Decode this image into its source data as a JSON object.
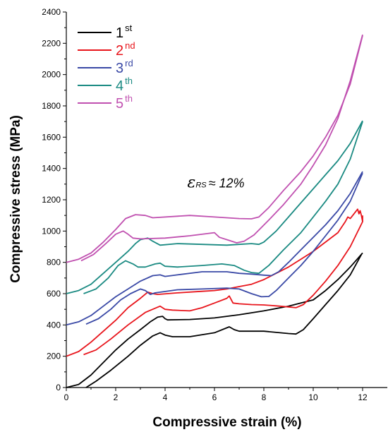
{
  "chart_data": {
    "type": "line",
    "xlabel": "Compressive strain (%)",
    "ylabel": "Compressive stress (MPa)",
    "xlim": [
      0,
      13
    ],
    "ylim": [
      0,
      2400
    ],
    "xticks": [
      0,
      2,
      4,
      6,
      8,
      10,
      12
    ],
    "yticks": [
      0,
      200,
      400,
      600,
      800,
      1000,
      1200,
      1400,
      1600,
      1800,
      2000,
      2200,
      2400
    ],
    "grid": false,
    "legend_position": "top-left",
    "annotation": {
      "symbol": "ε",
      "subscript": "RS",
      "text": "≈ 12%",
      "x": 4.9,
      "y": 1280
    },
    "series": [
      {
        "name": "1",
        "sup": "st",
        "color": "#000000",
        "offset": 0,
        "curves": [
          [
            [
              0,
              0
            ],
            [
              0.5,
              20
            ],
            [
              1,
              80
            ],
            [
              1.5,
              160
            ],
            [
              2,
              240
            ],
            [
              2.5,
              310
            ],
            [
              3,
              370
            ],
            [
              3.4,
              420
            ],
            [
              3.7,
              450
            ],
            [
              3.9,
              455
            ],
            [
              4.0,
              440
            ],
            [
              4.1,
              432
            ],
            [
              5,
              435
            ],
            [
              6,
              445
            ],
            [
              6.5,
              455
            ],
            [
              7,
              465
            ],
            [
              8,
              490
            ],
            [
              9,
              520
            ],
            [
              9.5,
              540
            ],
            [
              10,
              560
            ],
            [
              10.5,
              620
            ],
            [
              11,
              690
            ],
            [
              11.5,
              770
            ],
            [
              12,
              860
            ]
          ],
          [
            [
              0.8,
              0
            ],
            [
              1.2,
              40
            ],
            [
              1.8,
              110
            ],
            [
              2.5,
              200
            ],
            [
              3,
              270
            ],
            [
              3.5,
              330
            ],
            [
              3.8,
              350
            ],
            [
              4.0,
              335
            ],
            [
              4.3,
              325
            ],
            [
              5,
              325
            ],
            [
              6,
              350
            ],
            [
              6.6,
              388
            ],
            [
              6.8,
              370
            ],
            [
              7,
              360
            ],
            [
              8,
              360
            ],
            [
              9,
              345
            ],
            [
              9.3,
              342
            ],
            [
              9.6,
              370
            ],
            [
              10,
              440
            ],
            [
              10.5,
              530
            ],
            [
              11,
              620
            ],
            [
              11.5,
              720
            ],
            [
              11.95,
              850
            ]
          ]
        ]
      },
      {
        "name": "2",
        "sup": "nd",
        "color": "#e8141b",
        "offset": 200,
        "curves": [
          [
            [
              0,
              200
            ],
            [
              0.5,
              230
            ],
            [
              1,
              290
            ],
            [
              1.5,
              360
            ],
            [
              2,
              430
            ],
            [
              2.5,
              510
            ],
            [
              3,
              570
            ],
            [
              3.3,
              610
            ],
            [
              3.5,
              600
            ],
            [
              3.7,
              595
            ],
            [
              4.5,
              605
            ],
            [
              5.5,
              615
            ],
            [
              6,
              620
            ],
            [
              6.5,
              630
            ],
            [
              7,
              645
            ],
            [
              7.5,
              660
            ],
            [
              8,
              690
            ],
            [
              8.5,
              730
            ],
            [
              9,
              770
            ],
            [
              9.5,
              820
            ],
            [
              10,
              870
            ],
            [
              10.5,
              930
            ],
            [
              11,
              990
            ],
            [
              11.3,
              1060
            ],
            [
              11.4,
              1090
            ],
            [
              11.5,
              1080
            ],
            [
              11.6,
              1100
            ],
            [
              11.7,
              1120
            ],
            [
              11.8,
              1140
            ],
            [
              11.85,
              1110
            ],
            [
              11.9,
              1130
            ],
            [
              11.95,
              1100
            ],
            [
              12,
              1060
            ]
          ],
          [
            [
              0.7,
              210
            ],
            [
              1.2,
              240
            ],
            [
              1.8,
              310
            ],
            [
              2.5,
              400
            ],
            [
              3.2,
              480
            ],
            [
              3.8,
              520
            ],
            [
              4.0,
              500
            ],
            [
              4.3,
              495
            ],
            [
              5,
              490
            ],
            [
              5.5,
              510
            ],
            [
              6,
              540
            ],
            [
              6.5,
              570
            ],
            [
              6.6,
              585
            ],
            [
              6.75,
              540
            ],
            [
              7,
              535
            ],
            [
              7.5,
              530
            ],
            [
              8,
              528
            ],
            [
              8.5,
              522
            ],
            [
              9,
              515
            ],
            [
              9.3,
              510
            ],
            [
              9.6,
              530
            ],
            [
              10,
              590
            ],
            [
              10.5,
              680
            ],
            [
              11,
              780
            ],
            [
              11.5,
              900
            ],
            [
              12,
              1060
            ],
            [
              12,
              1100
            ]
          ]
        ]
      },
      {
        "name": "3",
        "sup": "rd",
        "color": "#3a49a6",
        "offset": 400,
        "curves": [
          [
            [
              0,
              400
            ],
            [
              0.5,
              420
            ],
            [
              1,
              460
            ],
            [
              1.5,
              520
            ],
            [
              2,
              580
            ],
            [
              2.5,
              630
            ],
            [
              3,
              680
            ],
            [
              3.5,
              715
            ],
            [
              3.8,
              720
            ],
            [
              4.0,
              710
            ],
            [
              4.5,
              720
            ],
            [
              5.5,
              740
            ],
            [
              6.5,
              740
            ],
            [
              7,
              730
            ],
            [
              7.5,
              725
            ],
            [
              8,
              718
            ],
            [
              8.3,
              715
            ],
            [
              8.6,
              740
            ],
            [
              9,
              800
            ],
            [
              9.5,
              880
            ],
            [
              10,
              960
            ],
            [
              10.5,
              1040
            ],
            [
              11,
              1130
            ],
            [
              11.5,
              1240
            ],
            [
              12,
              1380
            ]
          ],
          [
            [
              0.8,
              405
            ],
            [
              1.3,
              440
            ],
            [
              1.8,
              500
            ],
            [
              2.2,
              560
            ],
            [
              2.6,
              600
            ],
            [
              3.0,
              630
            ],
            [
              3.2,
              620
            ],
            [
              3.4,
              595
            ],
            [
              3.6,
              605
            ],
            [
              4.5,
              625
            ],
            [
              5.5,
              630
            ],
            [
              6.5,
              635
            ],
            [
              7,
              630
            ],
            [
              7.5,
              600
            ],
            [
              7.9,
              580
            ],
            [
              8.2,
              582
            ],
            [
              8.5,
              620
            ],
            [
              9,
              700
            ],
            [
              9.5,
              780
            ],
            [
              10,
              870
            ],
            [
              10.5,
              970
            ],
            [
              11,
              1070
            ],
            [
              11.5,
              1190
            ],
            [
              12,
              1370
            ]
          ]
        ]
      },
      {
        "name": "4",
        "sup": "th",
        "color": "#1a8a82",
        "offset": 600,
        "curves": [
          [
            [
              0,
              600
            ],
            [
              0.5,
              620
            ],
            [
              1,
              660
            ],
            [
              1.5,
              730
            ],
            [
              2,
              800
            ],
            [
              2.5,
              870
            ],
            [
              2.8,
              920
            ],
            [
              3,
              945
            ],
            [
              3.3,
              955
            ],
            [
              3.5,
              935
            ],
            [
              3.8,
              910
            ],
            [
              4.5,
              920
            ],
            [
              5.5,
              915
            ],
            [
              6.5,
              910
            ],
            [
              7,
              915
            ],
            [
              7.5,
              920
            ],
            [
              7.8,
              915
            ],
            [
              8,
              930
            ],
            [
              8.5,
              1000
            ],
            [
              9,
              1090
            ],
            [
              9.5,
              1180
            ],
            [
              10,
              1270
            ],
            [
              10.5,
              1360
            ],
            [
              11,
              1450
            ],
            [
              11.5,
              1560
            ],
            [
              12,
              1705
            ]
          ],
          [
            [
              0.7,
              600
            ],
            [
              1.2,
              630
            ],
            [
              1.7,
              700
            ],
            [
              2.1,
              780
            ],
            [
              2.4,
              810
            ],
            [
              2.7,
              790
            ],
            [
              2.9,
              770
            ],
            [
              3.2,
              770
            ],
            [
              3.6,
              790
            ],
            [
              3.8,
              795
            ],
            [
              4.0,
              775
            ],
            [
              4.5,
              770
            ],
            [
              5.5,
              780
            ],
            [
              6.3,
              790
            ],
            [
              6.8,
              780
            ],
            [
              7.2,
              750
            ],
            [
              7.5,
              735
            ],
            [
              7.8,
              730
            ],
            [
              8.2,
              780
            ],
            [
              8.8,
              880
            ],
            [
              9.5,
              990
            ],
            [
              10,
              1090
            ],
            [
              10.5,
              1190
            ],
            [
              11,
              1300
            ],
            [
              11.5,
              1460
            ],
            [
              12,
              1700
            ]
          ]
        ]
      },
      {
        "name": "5",
        "sup": "th",
        "color": "#c050b0",
        "offset": 800,
        "curves": [
          [
            [
              0,
              800
            ],
            [
              0.5,
              820
            ],
            [
              1,
              860
            ],
            [
              1.5,
              930
            ],
            [
              2,
              1010
            ],
            [
              2.4,
              1080
            ],
            [
              2.8,
              1105
            ],
            [
              3.2,
              1100
            ],
            [
              3.5,
              1085
            ],
            [
              4.5,
              1095
            ],
            [
              5,
              1100
            ],
            [
              6,
              1090
            ],
            [
              7,
              1080
            ],
            [
              7.5,
              1078
            ],
            [
              7.8,
              1090
            ],
            [
              8.2,
              1150
            ],
            [
              8.8,
              1260
            ],
            [
              9.5,
              1380
            ],
            [
              10,
              1480
            ],
            [
              10.5,
              1600
            ],
            [
              11,
              1740
            ],
            [
              11.5,
              1940
            ],
            [
              12,
              2250
            ]
          ],
          [
            [
              0.6,
              810
            ],
            [
              1.1,
              850
            ],
            [
              1.6,
              920
            ],
            [
              2.0,
              980
            ],
            [
              2.3,
              1000
            ],
            [
              2.5,
              980
            ],
            [
              2.7,
              955
            ],
            [
              3.0,
              950
            ],
            [
              4,
              955
            ],
            [
              5,
              970
            ],
            [
              6,
              990
            ],
            [
              6.2,
              960
            ],
            [
              6.6,
              940
            ],
            [
              6.9,
              925
            ],
            [
              7.2,
              935
            ],
            [
              7.6,
              975
            ],
            [
              8.2,
              1070
            ],
            [
              8.8,
              1170
            ],
            [
              9.5,
              1300
            ],
            [
              10,
              1420
            ],
            [
              10.5,
              1550
            ],
            [
              11,
              1720
            ],
            [
              11.5,
              1960
            ],
            [
              12,
              2255
            ]
          ]
        ]
      }
    ]
  }
}
